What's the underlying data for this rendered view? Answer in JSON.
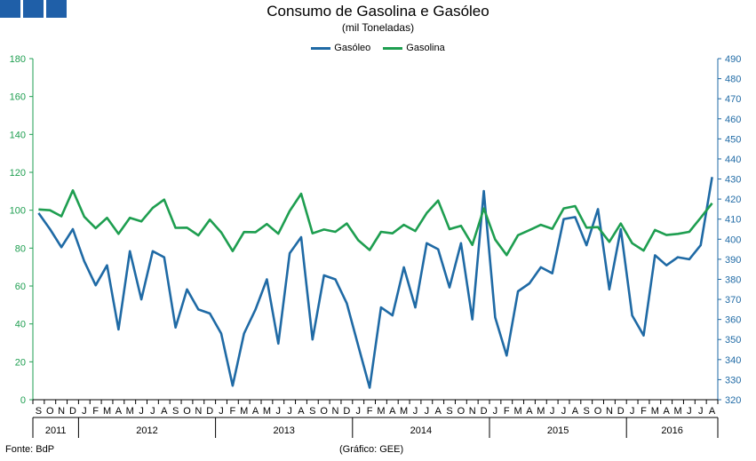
{
  "header": {
    "title": "Consumo de Gasolina e Gasóleo",
    "subtitle": "(mil Toneladas)",
    "block_color": "#1f5fa8"
  },
  "footer": {
    "source": "Fonte: BdP",
    "credit": "(Gráfico: GEE)"
  },
  "chart_data": {
    "type": "line",
    "title": "Consumo de Gasolina e Gasóleo",
    "subtitle": "(mil Toneladas)",
    "legend_position": "top-center",
    "grid": false,
    "x": [
      "S",
      "O",
      "N",
      "D",
      "J",
      "F",
      "M",
      "A",
      "M",
      "J",
      "J",
      "A",
      "S",
      "O",
      "N",
      "D",
      "J",
      "F",
      "M",
      "A",
      "M",
      "J",
      "J",
      "A",
      "S",
      "O",
      "N",
      "D",
      "J",
      "F",
      "M",
      "A",
      "M",
      "J",
      "J",
      "A",
      "S",
      "O",
      "N",
      "D",
      "J",
      "F",
      "M",
      "A",
      "M",
      "J",
      "J",
      "A",
      "S",
      "O",
      "N",
      "D",
      "J",
      "F",
      "M",
      "A",
      "M",
      "J",
      "J",
      "A"
    ],
    "years": [
      {
        "label": "2011",
        "start": 0,
        "end": 3
      },
      {
        "label": "2012",
        "start": 4,
        "end": 15
      },
      {
        "label": "2013",
        "start": 16,
        "end": 27
      },
      {
        "label": "2014",
        "start": 28,
        "end": 39
      },
      {
        "label": "2015",
        "start": 40,
        "end": 51
      },
      {
        "label": "2016",
        "start": 52,
        "end": 59
      }
    ],
    "y_left": {
      "min": 0,
      "max": 180,
      "step": 20,
      "color": "#1e9e50"
    },
    "y_right": {
      "min": 320,
      "max": 490,
      "step": 10,
      "color": "#1f6aa5"
    },
    "series": [
      {
        "name": "Gasóleo",
        "axis": "right",
        "color": "#1f6aa5",
        "values": [
          413,
          405,
          396,
          405,
          389,
          377,
          387,
          355,
          394,
          370,
          394,
          391,
          356,
          375,
          365,
          363,
          353,
          327,
          353,
          365,
          380,
          348,
          393,
          401,
          350,
          382,
          380,
          368,
          347,
          326,
          366,
          362,
          386,
          366,
          398,
          395,
          376,
          398,
          360,
          424,
          361,
          342,
          374,
          378,
          386,
          383,
          410,
          411,
          397,
          415,
          375,
          405,
          362,
          352,
          392,
          387,
          391,
          390,
          397,
          431
        ],
        "style": "line"
      },
      {
        "name": "Gasolina",
        "axis": "left",
        "color": "#1e9e50",
        "values": [
          100.4,
          100,
          96.8,
          110.5,
          96.6,
          90.5,
          96,
          87.5,
          96,
          94.1,
          101.2,
          105.6,
          90.7,
          90.8,
          86.7,
          95,
          88.3,
          78.4,
          88.5,
          88.4,
          92.7,
          87.6,
          99.6,
          108.7,
          87.8,
          89.8,
          88.6,
          93,
          84.2,
          79,
          88.6,
          87.8,
          92.3,
          89,
          98.5,
          105.1,
          90,
          91.8,
          81.7,
          100.9,
          84.5,
          76.3,
          86.8,
          89.5,
          92.3,
          90.2,
          100.9,
          102.2,
          90.8,
          91.1,
          83.3,
          93,
          82.6,
          78.7,
          89.6,
          86.9,
          87.5,
          88.6,
          96,
          103.7
        ]
      }
    ]
  }
}
